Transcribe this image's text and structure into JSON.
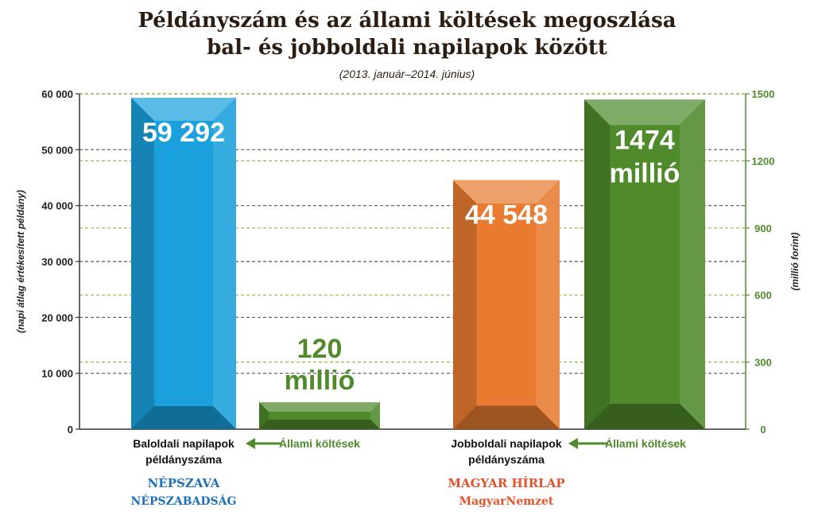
{
  "title_line1": "Példányszám és az állami költések megoszlása",
  "title_line2": "bal- és jobboldali napilapok között",
  "subtitle": "(2013. január–2014. június)",
  "chart_data": {
    "type": "bar",
    "left_axis": {
      "label": "(napi átlag értékesített példány)",
      "ylim": [
        0,
        60000
      ],
      "ticks": [
        0,
        10000,
        20000,
        30000,
        40000,
        50000,
        60000
      ],
      "tick_labels": [
        "0",
        "10 000",
        "20 000",
        "30 000",
        "40 000",
        "50 000",
        "60 000"
      ],
      "grid_color": "#555555"
    },
    "right_axis": {
      "label": "(millió forint)",
      "ylim": [
        0,
        1500
      ],
      "ticks": [
        0,
        300,
        600,
        900,
        1200,
        1500
      ],
      "tick_labels": [
        "0",
        "300",
        "600",
        "900",
        "1200",
        "1500"
      ],
      "grid_color": "#8cbf3f"
    },
    "groups": [
      {
        "category": "Baloldali napilapok példányszáma",
        "category_lines": [
          "Baloldali napilapok",
          "példányszáma"
        ],
        "spending_label": "Állami költések",
        "logos": [
          "NÉPSZAVA",
          "NÉPSZABADSÁG"
        ],
        "circulation": {
          "value": 59292,
          "label": "59 292",
          "color": "#1aa0dc"
        },
        "spending": {
          "value": 120,
          "label_lines": [
            "120",
            "millió"
          ],
          "color": "#4f8a2b"
        }
      },
      {
        "category": "Jobboldali napilapok példányszáma",
        "category_lines": [
          "Jobboldali napilapok",
          "példányszáma"
        ],
        "spending_label": "Állami költések",
        "logos": [
          "MAGYAR HÍRLAP",
          "MagyarNemzet"
        ],
        "circulation": {
          "value": 44548,
          "label": "44 548",
          "color": "#e87b30"
        },
        "spending": {
          "value": 1474,
          "label_lines": [
            "1474",
            "millió"
          ],
          "color": "#4f8a2b"
        }
      }
    ],
    "grid": true
  }
}
